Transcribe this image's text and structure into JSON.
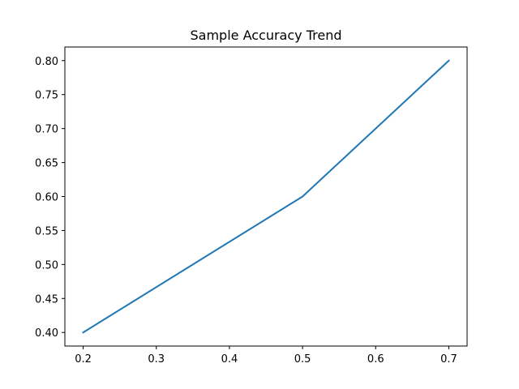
{
  "chart_data": {
    "type": "line",
    "title": "Sample Accuracy Trend",
    "xlabel": "",
    "ylabel": "",
    "xlim": [
      0.175,
      0.725
    ],
    "ylim": [
      0.38,
      0.82
    ],
    "x_ticks": [
      0.2,
      0.3,
      0.4,
      0.5,
      0.6,
      0.7
    ],
    "x_tick_labels": [
      "0.2",
      "0.3",
      "0.4",
      "0.5",
      "0.6",
      "0.7"
    ],
    "y_ticks": [
      0.4,
      0.45,
      0.5,
      0.55,
      0.6,
      0.65,
      0.7,
      0.75,
      0.8
    ],
    "y_tick_labels": [
      "0.40",
      "0.45",
      "0.50",
      "0.55",
      "0.60",
      "0.65",
      "0.70",
      "0.75",
      "0.80"
    ],
    "grid": false,
    "legend": "none",
    "series": [
      {
        "x": [
          0.2,
          0.5,
          0.7
        ],
        "values": [
          0.4,
          0.6,
          0.8
        ],
        "color": "#1f77b4"
      }
    ]
  }
}
